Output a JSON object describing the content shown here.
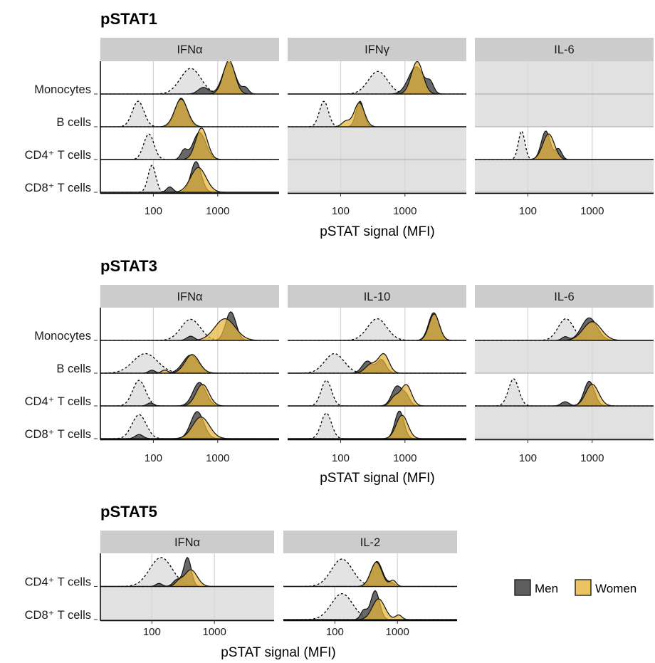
{
  "legend": {
    "placement": "right",
    "entries": [
      {
        "label": "Men",
        "color": "#4d4d4d"
      },
      {
        "label": "Women",
        "color": "#e6b53c"
      }
    ]
  },
  "colors": {
    "men": "#4d4d4d",
    "women": "#e6b53c",
    "unstim": "#e3e3e3",
    "empty_row": "#e1e1e1",
    "strip": "#cccccc",
    "grid": "#d6d6d6"
  },
  "chart_data": [
    {
      "type": "area",
      "subtype": "ridgeline-density",
      "title": "pSTAT1",
      "xlabel": "pSTAT signal (MFI)",
      "x_scale": "log10",
      "xlim": [
        15,
        9000
      ],
      "xticks": [
        100,
        1000
      ],
      "xtick_labels": [
        "100",
        "1000"
      ],
      "rows": [
        "Monocytes",
        "B cells",
        "CD4⁺ T cells",
        "CD8⁺ T cells"
      ],
      "panels": [
        {
          "label": "IFNα",
          "rows": [
            {
              "cell": "Monocytes",
              "unstim": [
                [
                  380,
                  0.85,
                  0.16
                ]
              ],
              "men": [
                [
                  1500,
                  1.05,
                  0.1
                ],
                [
                  600,
                  0.22,
                  0.08
                ],
                [
                  2700,
                  0.2,
                  0.05
                ]
              ],
              "women": [
                [
                  1500,
                  1.12,
                  0.09
                ]
              ]
            },
            {
              "cell": "B cells",
              "unstim": [
                [
                  58,
                  0.85,
                  0.09
                ]
              ],
              "men": [
                [
                  270,
                  0.95,
                  0.09
                ]
              ],
              "women": [
                [
                  270,
                  0.92,
                  0.1
                ]
              ]
            },
            {
              "cell": "CD4⁺ T cells",
              "unstim": [
                [
                  85,
                  0.85,
                  0.08
                ]
              ],
              "men": [
                [
                  520,
                  0.9,
                  0.1
                ],
                [
                  300,
                  0.3,
                  0.05
                ]
              ],
              "women": [
                [
                  560,
                  1.05,
                  0.09
                ]
              ]
            },
            {
              "cell": "CD8⁺ T cells",
              "unstim": [
                [
                  95,
                  0.9,
                  0.06
                ]
              ],
              "men": [
                [
                  460,
                  1.02,
                  0.08
                ],
                [
                  180,
                  0.18,
                  0.05
                ]
              ],
              "women": [
                [
                  500,
                  0.82,
                  0.12
                ]
              ]
            }
          ]
        },
        {
          "label": "IFNγ",
          "rows": [
            {
              "cell": "Monocytes",
              "unstim": [
                [
                  380,
                  0.75,
                  0.15
                ]
              ],
              "men": [
                [
                  1500,
                  0.9,
                  0.12
                ],
                [
                  2500,
                  0.3,
                  0.05
                ]
              ],
              "women": [
                [
                  1550,
                  1.08,
                  0.09
                ]
              ]
            },
            {
              "cell": "B cells",
              "unstim": [
                [
                  55,
                  0.85,
                  0.07
                ]
              ],
              "men": [
                [
                  200,
                  0.85,
                  0.06
                ]
              ],
              "women": [
                [
                  195,
                  0.8,
                  0.08
                ],
                [
                  120,
                  0.18,
                  0.06
                ]
              ]
            },
            {
              "cell": "CD4⁺ T cells",
              "empty": true
            },
            {
              "cell": "CD8⁺ T cells",
              "empty": true
            }
          ]
        },
        {
          "label": "IL-6",
          "rows": [
            {
              "cell": "Monocytes",
              "empty": true
            },
            {
              "cell": "B cells",
              "empty": true
            },
            {
              "cell": "CD4⁺ T cells",
              "unstim": [
                [
                  80,
                  0.95,
                  0.05
                ]
              ],
              "men": [
                [
                  190,
                  0.95,
                  0.07
                ],
                [
                  300,
                  0.35,
                  0.05
                ]
              ],
              "women": [
                [
                  210,
                  0.85,
                  0.09
                ]
              ]
            },
            {
              "cell": "CD8⁺ T cells",
              "empty": true
            }
          ]
        }
      ]
    },
    {
      "type": "area",
      "subtype": "ridgeline-density",
      "title": "pSTAT3",
      "xlabel": "pSTAT signal (MFI)",
      "x_scale": "log10",
      "xlim": [
        15,
        9000
      ],
      "xticks": [
        100,
        1000
      ],
      "xtick_labels": [
        "100",
        "1000"
      ],
      "rows": [
        "Monocytes",
        "B cells",
        "CD4⁺ T cells",
        "CD8⁺ T cells"
      ],
      "panels": [
        {
          "label": "IFNα",
          "rows": [
            {
              "cell": "Monocytes",
              "unstim": [
                [
                  380,
                  0.7,
                  0.15
                ]
              ],
              "men": [
                [
                  1600,
                  0.95,
                  0.08
                ],
                [
                  380,
                  0.14,
                  0.06
                ]
              ],
              "women": [
                [
                  1300,
                  0.72,
                  0.16
                ]
              ]
            },
            {
              "cell": "B cells",
              "unstim": [
                [
                  75,
                  0.65,
                  0.19
                ]
              ],
              "men": [
                [
                  380,
                  0.6,
                  0.12
                ],
                [
                  95,
                  0.1,
                  0.05
                ]
              ],
              "women": [
                [
                  400,
                  0.62,
                  0.11
                ],
                [
                  150,
                  0.1,
                  0.05
                ]
              ]
            },
            {
              "cell": "CD4⁺ T cells",
              "unstim": [
                [
                  60,
                  0.85,
                  0.1
                ]
              ],
              "men": [
                [
                  520,
                  0.78,
                  0.1
                ],
                [
                  90,
                  0.1,
                  0.05
                ]
              ],
              "women": [
                [
                  580,
                  0.72,
                  0.1
                ]
              ]
            },
            {
              "cell": "CD8⁺ T cells",
              "unstim": [
                [
                  60,
                  0.8,
                  0.11
                ]
              ],
              "men": [
                [
                  480,
                  0.9,
                  0.1
                ],
                [
                  60,
                  0.14,
                  0.06
                ]
              ],
              "women": [
                [
                  550,
                  0.72,
                  0.13
                ]
              ]
            }
          ]
        },
        {
          "label": "IL-10",
          "rows": [
            {
              "cell": "Monocytes",
              "unstim": [
                [
                  370,
                  0.72,
                  0.15
                ]
              ],
              "men": [
                [
                  2800,
                  0.92,
                  0.08
                ]
              ],
              "women": [
                [
                  2850,
                  0.88,
                  0.08
                ]
              ]
            },
            {
              "cell": "B cells",
              "unstim": [
                [
                  80,
                  0.65,
                  0.15
                ]
              ],
              "men": [
                [
                  260,
                  0.4,
                  0.08
                ],
                [
                  430,
                  0.45,
                  0.07
                ]
              ],
              "women": [
                [
                  300,
                  0.3,
                  0.09
                ],
                [
                  470,
                  0.62,
                  0.08
                ]
              ]
            },
            {
              "cell": "CD4⁺ T cells",
              "unstim": [
                [
                  60,
                  0.85,
                  0.08
                ]
              ],
              "men": [
                [
                  750,
                  0.65,
                  0.08
                ],
                [
                  1050,
                  0.3,
                  0.06
                ]
              ],
              "women": [
                [
                  1050,
                  0.7,
                  0.08
                ],
                [
                  700,
                  0.3,
                  0.07
                ]
              ]
            },
            {
              "cell": "CD8⁺ T cells",
              "unstim": [
                [
                  60,
                  0.85,
                  0.08
                ]
              ],
              "men": [
                [
                  820,
                  0.92,
                  0.07
                ]
              ],
              "women": [
                [
                  900,
                  0.78,
                  0.09
                ]
              ]
            }
          ]
        },
        {
          "label": "IL-6",
          "rows": [
            {
              "cell": "Monocytes",
              "unstim": [
                [
                  390,
                  0.72,
                  0.12
                ]
              ],
              "men": [
                [
                  900,
                  0.75,
                  0.12
                ],
                [
                  380,
                  0.12,
                  0.05
                ]
              ],
              "women": [
                [
                  1000,
                  0.62,
                  0.14
                ]
              ]
            },
            {
              "cell": "B cells",
              "empty": true
            },
            {
              "cell": "CD4⁺ T cells",
              "unstim": [
                [
                  60,
                  0.9,
                  0.08
                ]
              ],
              "men": [
                [
                  900,
                  0.82,
                  0.08
                ],
                [
                  380,
                  0.14,
                  0.06
                ]
              ],
              "women": [
                [
                  1000,
                  0.72,
                  0.1
                ]
              ]
            },
            {
              "cell": "CD8⁺ T cells",
              "empty": true
            }
          ]
        }
      ]
    },
    {
      "type": "area",
      "subtype": "ridgeline-density",
      "title": "pSTAT5",
      "xlabel": "pSTAT signal (MFI)",
      "x_scale": "log10",
      "xlim": [
        15,
        9000
      ],
      "xticks": [
        100,
        1000
      ],
      "xtick_labels": [
        "100",
        "1000"
      ],
      "rows": [
        "CD4⁺ T cells",
        "CD8⁺ T cells"
      ],
      "panels": [
        {
          "label": "IFNα",
          "rows": [
            {
              "cell": "CD4⁺ T cells",
              "unstim": [
                [
                  140,
                  0.95,
                  0.18
                ]
              ],
              "men": [
                [
                  370,
                  0.95,
                  0.06
                ],
                [
                  250,
                  0.22,
                  0.06
                ],
                [
                  130,
                  0.1,
                  0.05
                ]
              ],
              "women": [
                [
                  420,
                  0.55,
                  0.1
                ],
                [
                  270,
                  0.15,
                  0.06
                ]
              ]
            },
            {
              "cell": "CD8⁺ T cells",
              "empty": true
            }
          ]
        },
        {
          "label": "IL-2",
          "rows": [
            {
              "cell": "CD4⁺ T cells",
              "unstim": [
                [
                  130,
                  0.9,
                  0.17
                ]
              ],
              "men": [
                [
                  470,
                  0.82,
                  0.09
                ],
                [
                  800,
                  0.12,
                  0.05
                ]
              ],
              "women": [
                [
                  460,
                  0.8,
                  0.09
                ],
                [
                  850,
                  0.2,
                  0.05
                ]
              ]
            },
            {
              "cell": "CD8⁺ T cells",
              "unstim": [
                [
                  130,
                  0.85,
                  0.17
                ]
              ],
              "men": [
                [
                  440,
                  0.95,
                  0.07
                ],
                [
                  290,
                  0.3,
                  0.05
                ]
              ],
              "women": [
                [
                  500,
                  0.68,
                  0.1
                ],
                [
                  1050,
                  0.15,
                  0.05
                ]
              ]
            }
          ]
        }
      ]
    }
  ]
}
